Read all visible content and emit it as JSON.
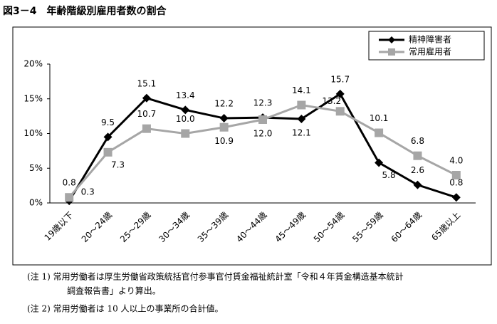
{
  "chart_data": {
    "type": "line",
    "title": "図3－4　年齢階級別雇用者数の割合",
    "categories": [
      "19歳以下",
      "20～24歳",
      "25～29歳",
      "30～34歳",
      "35～39歳",
      "40～44歳",
      "45～49歳",
      "50～54歳",
      "55～59歳",
      "60～64歳",
      "65歳以上"
    ],
    "series": [
      {
        "name": "精神障害者",
        "color": "#000000",
        "marker": "diamond",
        "values": [
          0.3,
          9.5,
          15.1,
          13.4,
          12.2,
          12.3,
          12.1,
          15.7,
          5.8,
          2.6,
          0.8
        ],
        "value_labels": [
          "0.3",
          "9.5",
          "15.1",
          "13.4",
          "12.2",
          "12.3",
          "12.1",
          "15.7",
          "5.8",
          "2.6",
          "0.8"
        ]
      },
      {
        "name": "常用雇用者",
        "color": "#a6a6a6",
        "marker": "square",
        "values": [
          0.8,
          7.3,
          10.7,
          10.0,
          10.9,
          12.0,
          14.1,
          13.2,
          10.1,
          6.8,
          4.0
        ],
        "value_labels": [
          "0.8",
          "7.3",
          "10.7",
          "10.0",
          "10.9",
          "12.0",
          "14.1",
          "13.2",
          "10.1",
          "6.8",
          "4.0"
        ]
      }
    ],
    "ylim": [
      0,
      20
    ],
    "yticks": [
      {
        "value": 0,
        "label": "0%"
      },
      {
        "value": 5,
        "label": "5%"
      },
      {
        "value": 10,
        "label": "10%"
      },
      {
        "value": 15,
        "label": "15%"
      },
      {
        "value": 20,
        "label": "20%"
      }
    ],
    "grid": false,
    "legend": "top-right"
  },
  "notes": [
    "(注 1)  常用労働者は厚生労働省政策統括官付参事官付賃金福祉統計室「令和４年賃金構造基本統計",
    "調査報告書」より算出。",
    "(注 2)  常用労働者は 10 人以上の事業所の合計値。"
  ]
}
